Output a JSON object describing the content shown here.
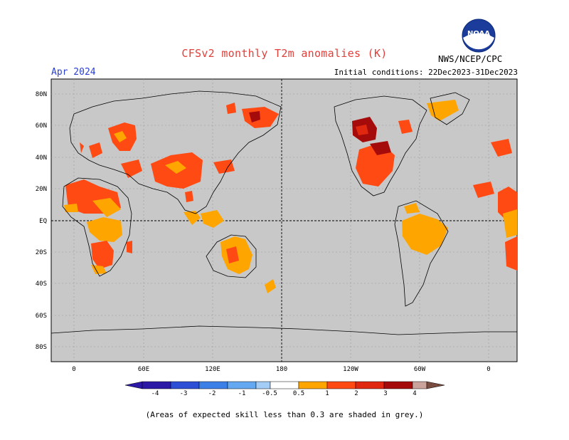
{
  "header": {
    "title": "CFSv2 monthly T2m anomalies (K)",
    "forecast_month": "Apr 2024",
    "initial_conditions": "Initial conditions: 22Dec2023-31Dec2023",
    "organization": "NWS/NCEP/CPC",
    "logo_text": "NOAA"
  },
  "map": {
    "background_color": "#c8c8c8",
    "lat_labels": [
      "80N",
      "60N",
      "40N",
      "20N",
      "EQ",
      "20S",
      "40S",
      "60S",
      "80S"
    ],
    "lon_labels": [
      "0",
      "60E",
      "120E",
      "180",
      "120W",
      "60W",
      "0"
    ]
  },
  "colorbar": {
    "labels": [
      "-4",
      "-3",
      "-2",
      "-1",
      "-0.5",
      "0.5",
      "1",
      "2",
      "3",
      "4"
    ],
    "colors": [
      "#2c19a6",
      "#2d4fd6",
      "#3c7fe6",
      "#63a8f0",
      "#a3cdf7",
      "#ffffff",
      "#ffa500",
      "#ff4a13",
      "#e02810",
      "#a50b0b",
      "#caa49c",
      "#7a4b3f"
    ]
  },
  "footnote": "(Areas of expected skill less than 0.3 are shaded in grey.)"
}
